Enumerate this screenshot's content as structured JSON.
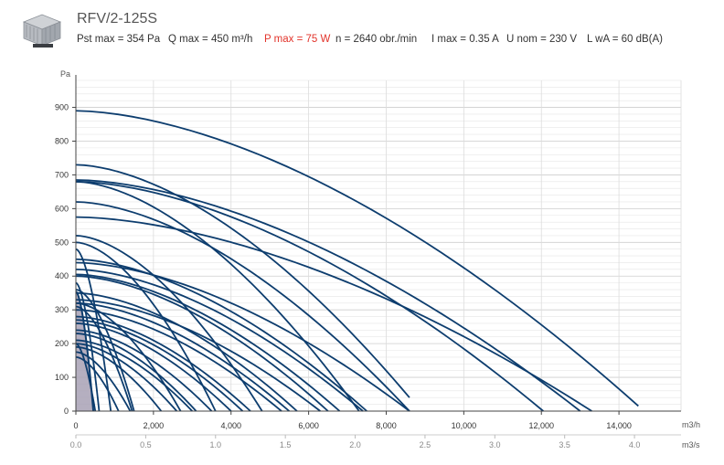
{
  "header": {
    "title": "RFV/2-125S",
    "specs": {
      "pst_max": "Pst max = 354 Pa",
      "q_max": "Q max = 450 m³/h",
      "p_max": "P max = 75 W",
      "n": "n = 2640 obr./min",
      "i_max": "I max = 0.35 A",
      "u_nom": "U nom = 230 V",
      "lwa": "L wA = 60 dB(A)"
    },
    "colors": {
      "accent": "#e2342b",
      "curve": "#0d3d6e",
      "highlight_area": "#a8a1b5"
    },
    "image_icon": "fan-product-icon"
  },
  "chart_data": {
    "type": "line",
    "y_unit": "Pa",
    "x_unit": "m3/h",
    "x2_unit": "m3/s",
    "xlim": [
      0,
      15600
    ],
    "ylim": [
      0,
      980
    ],
    "x_ticks": [
      "0",
      "2,000",
      "4,000",
      "6,000",
      "8,000",
      "10,000",
      "12,000",
      "14,000"
    ],
    "x_tick_values": [
      0,
      2000,
      4000,
      6000,
      8000,
      10000,
      12000,
      14000
    ],
    "x2_ticks": [
      "0.0",
      "0.5",
      "1.0",
      "1.5",
      "2.0",
      "2.5",
      "3.0",
      "3.5",
      "4.0"
    ],
    "x2_tick_values": [
      0,
      0.5,
      1.0,
      1.5,
      2.0,
      2.5,
      3.0,
      3.5,
      4.0
    ],
    "y_ticks": [
      "0",
      "100",
      "200",
      "300",
      "400",
      "500",
      "600",
      "700",
      "800",
      "900"
    ],
    "y_tick_values": [
      0,
      100,
      200,
      300,
      400,
      500,
      600,
      700,
      800,
      900
    ],
    "grid": true,
    "highlighted_curve": {
      "x": [
        0,
        450
      ],
      "y": [
        354,
        0
      ]
    },
    "series": [
      {
        "x": [
          0,
          14500
        ],
        "y": [
          890,
          15
        ]
      },
      {
        "x": [
          0,
          13300
        ],
        "y": [
          575,
          0
        ]
      },
      {
        "x": [
          0,
          13000
        ],
        "y": [
          685,
          0
        ]
      },
      {
        "x": [
          0,
          12050
        ],
        "y": [
          680,
          0
        ]
      },
      {
        "x": [
          0,
          8600
        ],
        "y": [
          730,
          40
        ]
      },
      {
        "x": [
          0,
          8600
        ],
        "y": [
          620,
          0
        ]
      },
      {
        "x": [
          0,
          8600
        ],
        "y": [
          440,
          0
        ]
      },
      {
        "x": [
          0,
          7500
        ],
        "y": [
          450,
          0
        ]
      },
      {
        "x": [
          0,
          7400
        ],
        "y": [
          420,
          0
        ]
      },
      {
        "x": [
          0,
          7300
        ],
        "y": [
          680,
          0
        ]
      },
      {
        "x": [
          0,
          6800
        ],
        "y": [
          405,
          0
        ]
      },
      {
        "x": [
          0,
          6500
        ],
        "y": [
          400,
          0
        ]
      },
      {
        "x": [
          0,
          6300
        ],
        "y": [
          330,
          0
        ]
      },
      {
        "x": [
          0,
          5700
        ],
        "y": [
          350,
          0
        ]
      },
      {
        "x": [
          0,
          5500
        ],
        "y": [
          320,
          0
        ]
      },
      {
        "x": [
          0,
          5300
        ],
        "y": [
          300,
          0
        ]
      },
      {
        "x": [
          0,
          4800
        ],
        "y": [
          520,
          0
        ]
      },
      {
        "x": [
          0,
          4500
        ],
        "y": [
          280,
          0
        ]
      },
      {
        "x": [
          0,
          4300
        ],
        "y": [
          270,
          0
        ]
      },
      {
        "x": [
          0,
          4000
        ],
        "y": [
          260,
          0
        ]
      },
      {
        "x": [
          0,
          3600
        ],
        "y": [
          500,
          0
        ]
      },
      {
        "x": [
          0,
          3500
        ],
        "y": [
          240,
          0
        ]
      },
      {
        "x": [
          0,
          3100
        ],
        "y": [
          230,
          0
        ]
      },
      {
        "x": [
          0,
          3000
        ],
        "y": [
          210,
          0
        ]
      },
      {
        "x": [
          0,
          2700
        ],
        "y": [
          320,
          0
        ]
      },
      {
        "x": [
          0,
          2600
        ],
        "y": [
          200,
          0
        ]
      },
      {
        "x": [
          0,
          2200
        ],
        "y": [
          190,
          0
        ]
      },
      {
        "x": [
          0,
          1500
        ],
        "y": [
          360,
          0
        ]
      },
      {
        "x": [
          0,
          1450
        ],
        "y": [
          310,
          0
        ]
      },
      {
        "x": [
          0,
          1400
        ],
        "y": [
          175,
          0
        ]
      },
      {
        "x": [
          0,
          1100
        ],
        "y": [
          160,
          0
        ]
      },
      {
        "x": [
          0,
          900
        ],
        "y": [
          480,
          0
        ]
      },
      {
        "x": [
          0,
          600
        ],
        "y": [
          380,
          0
        ]
      },
      {
        "x": [
          0,
          500
        ],
        "y": [
          200,
          0
        ]
      }
    ]
  }
}
